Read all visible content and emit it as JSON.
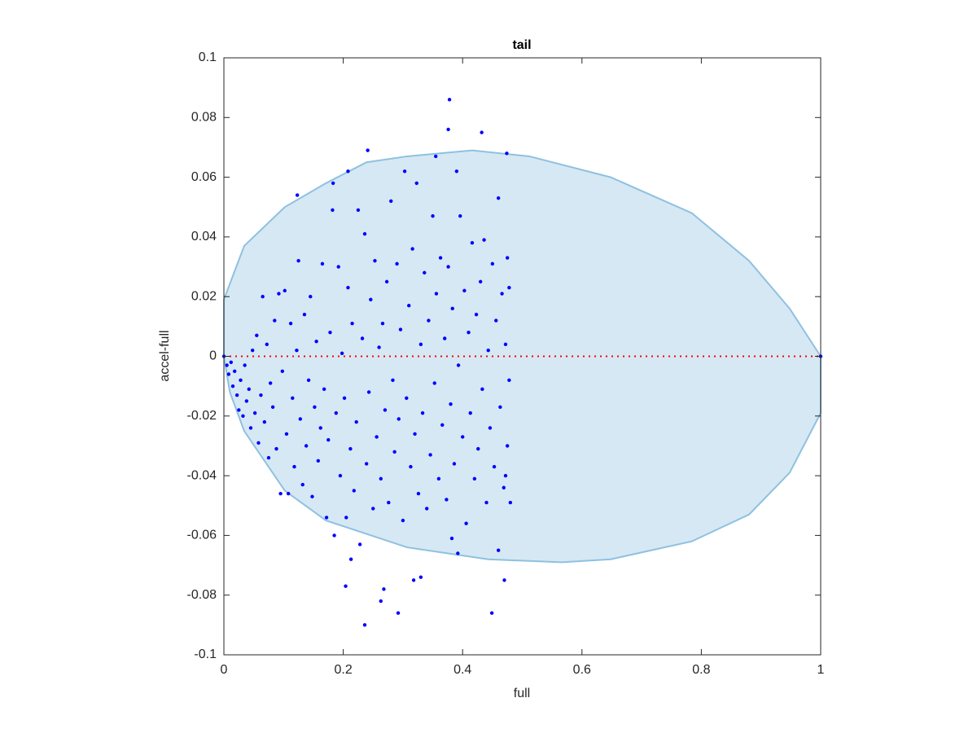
{
  "chart_data": {
    "type": "scatter",
    "title": "tail",
    "xlabel": "full",
    "ylabel": "accel-full",
    "xlim": [
      0,
      1
    ],
    "ylim": [
      -0.1,
      0.1
    ],
    "xticks": [
      0,
      0.2,
      0.4,
      0.6,
      0.8,
      1
    ],
    "yticks": [
      -0.1,
      -0.08,
      -0.06,
      -0.04,
      -0.02,
      0,
      0.02,
      0.04,
      0.06,
      0.08,
      0.1
    ],
    "region": {
      "color": "#d6e8f4",
      "edge_color": "#8ec1e0",
      "x": [
        0,
        0.034,
        0.102,
        0.171,
        0.239,
        0.307,
        0.416,
        0.512,
        0.648,
        0.784,
        0.88,
        0.948,
        1,
        1,
        0.948,
        0.88,
        0.784,
        0.648,
        0.566,
        0.443,
        0.307,
        0.171,
        0.102,
        0.034,
        0.01,
        0
      ],
      "values": [
        0.019,
        0.037,
        0.05,
        0.058,
        0.065,
        0.067,
        0.069,
        0.067,
        0.06,
        0.048,
        0.032,
        0.016,
        0,
        -0.019,
        -0.039,
        -0.053,
        -0.062,
        -0.068,
        -0.069,
        -0.068,
        -0.064,
        -0.055,
        -0.045,
        -0.025,
        -0.012,
        0
      ]
    },
    "reference_line": {
      "color": "#ff0000",
      "x": [
        0,
        1
      ],
      "values": [
        0,
        0
      ]
    },
    "series": [
      {
        "color": "#0000ff",
        "x": [
          0,
          0.005,
          0.008,
          0.012,
          0.015,
          0.018,
          0.022,
          0.025,
          0.028,
          0.032,
          0.035,
          0.038,
          0.042,
          0.045,
          0.048,
          0.052,
          0.055,
          0.058,
          0.062,
          0.065,
          0.068,
          0.072,
          0.075,
          0.078,
          0.082,
          0.085,
          0.088,
          0.092,
          0.095,
          0.098,
          0.102,
          0.105,
          0.108,
          0.112,
          0.115,
          0.118,
          0.122,
          0.125,
          0.128,
          0.132,
          0.135,
          0.138,
          0.142,
          0.145,
          0.148,
          0.152,
          0.155,
          0.158,
          0.162,
          0.165,
          0.168,
          0.172,
          0.175,
          0.178,
          0.182,
          0.185,
          0.188,
          0.192,
          0.195,
          0.198,
          0.202,
          0.205,
          0.208,
          0.212,
          0.215,
          0.218,
          0.222,
          0.225,
          0.228,
          0.232,
          0.236,
          0.239,
          0.243,
          0.246,
          0.25,
          0.253,
          0.256,
          0.26,
          0.263,
          0.266,
          0.27,
          0.273,
          0.276,
          0.28,
          0.283,
          0.286,
          0.29,
          0.293,
          0.296,
          0.3,
          0.303,
          0.306,
          0.31,
          0.313,
          0.316,
          0.32,
          0.323,
          0.326,
          0.33,
          0.333,
          0.336,
          0.34,
          0.343,
          0.346,
          0.35,
          0.353,
          0.356,
          0.36,
          0.363,
          0.366,
          0.37,
          0.373,
          0.376,
          0.38,
          0.383,
          0.386,
          0.39,
          0.393,
          0.396,
          0.4,
          0.403,
          0.406,
          0.41,
          0.413,
          0.416,
          0.42,
          0.423,
          0.426,
          0.43,
          0.433,
          0.436,
          0.44,
          0.443,
          0.446,
          0.45,
          0.453,
          0.456,
          0.46,
          0.463,
          0.466,
          0.469,
          0.472,
          0.475,
          0.478,
          0.48,
          0.478,
          0.475,
          0.472,
          0.378,
          0.376,
          0.432,
          0.241,
          0.474,
          0.355,
          0.123,
          0.183,
          0.208,
          0.236,
          0.292,
          0.449,
          0.263,
          0.204,
          0.268,
          0.318,
          0.33,
          0.47,
          0.213,
          0.46,
          0.392,
          0.382,
          1
        ],
        "values": [
          0,
          -0.003,
          -0.006,
          -0.002,
          -0.01,
          -0.005,
          -0.013,
          -0.018,
          -0.008,
          -0.02,
          -0.003,
          -0.015,
          -0.011,
          -0.024,
          0.002,
          -0.019,
          0.007,
          -0.029,
          -0.013,
          0.02,
          -0.022,
          0.004,
          -0.034,
          -0.009,
          -0.017,
          0.012,
          -0.031,
          0.021,
          -0.046,
          -0.005,
          0.022,
          -0.026,
          -0.046,
          0.011,
          -0.014,
          -0.037,
          0.002,
          0.032,
          -0.021,
          -0.043,
          0.014,
          -0.03,
          -0.008,
          0.02,
          -0.047,
          -0.017,
          0.005,
          -0.035,
          -0.024,
          0.031,
          -0.011,
          -0.054,
          -0.028,
          0.008,
          0.049,
          -0.06,
          -0.019,
          0.03,
          -0.04,
          0.001,
          -0.014,
          -0.054,
          0.023,
          -0.031,
          0.011,
          -0.045,
          -0.022,
          0.049,
          -0.063,
          0.006,
          0.041,
          -0.036,
          -0.012,
          0.019,
          -0.051,
          0.032,
          -0.027,
          0.003,
          -0.041,
          0.011,
          -0.018,
          0.025,
          -0.049,
          0.052,
          -0.008,
          -0.032,
          0.031,
          -0.021,
          0.009,
          -0.055,
          0.062,
          -0.014,
          0.017,
          -0.037,
          0.036,
          -0.026,
          0.058,
          -0.046,
          0.004,
          -0.019,
          0.028,
          -0.051,
          0.012,
          -0.033,
          0.047,
          -0.009,
          0.021,
          -0.041,
          0.033,
          -0.023,
          0.006,
          -0.048,
          0.03,
          -0.016,
          0.016,
          -0.036,
          0.062,
          -0.003,
          0.047,
          -0.027,
          0.022,
          -0.056,
          0.008,
          -0.019,
          0.038,
          -0.041,
          0.014,
          -0.031,
          0.025,
          -0.011,
          0.039,
          -0.049,
          0.002,
          -0.024,
          0.031,
          -0.037,
          0.012,
          0.053,
          -0.017,
          0.021,
          -0.044,
          0.004,
          -0.03,
          0.023,
          -0.049,
          -0.008,
          0.033,
          -0.04,
          0.086,
          0.076,
          0.075,
          0.069,
          0.068,
          0.067,
          0.054,
          0.058,
          0.062,
          -0.09,
          -0.086,
          -0.086,
          -0.082,
          -0.077,
          -0.078,
          -0.075,
          -0.074,
          -0.075,
          -0.068,
          -0.065,
          -0.066,
          -0.061,
          0
        ]
      }
    ]
  }
}
